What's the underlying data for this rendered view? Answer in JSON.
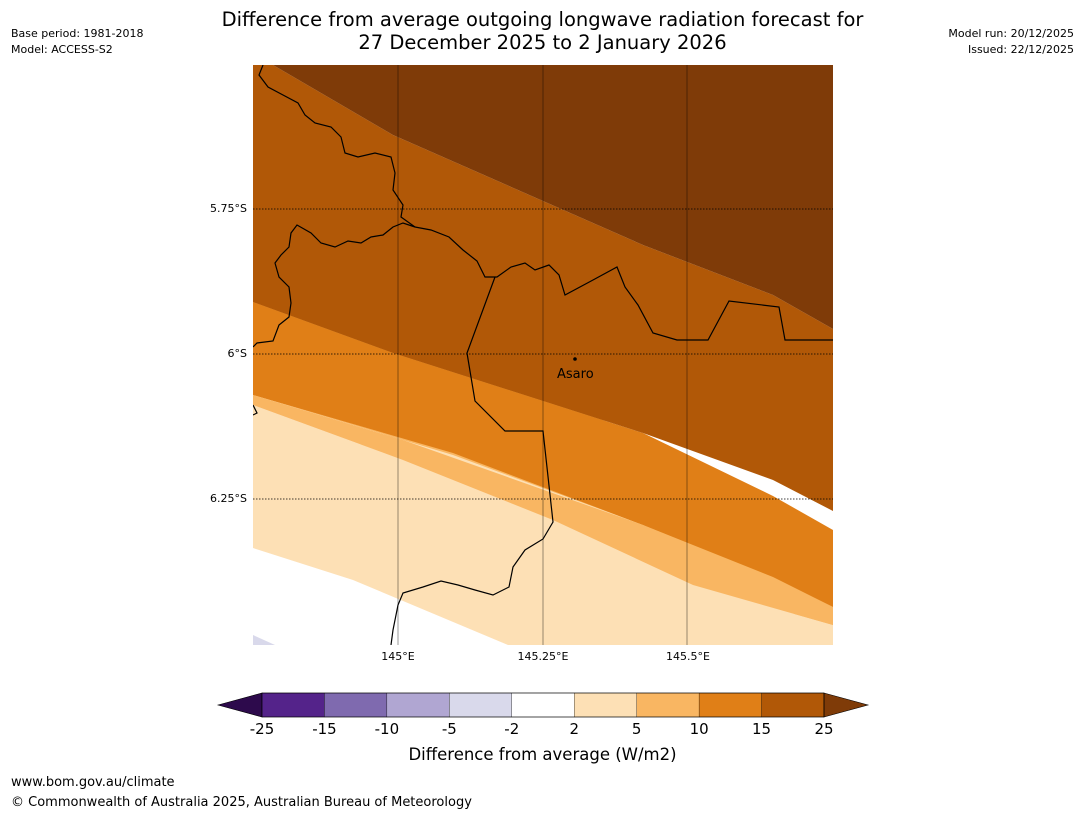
{
  "header": {
    "base_period": "Base period: 1981-2018",
    "model": "Model: ACCESS-S2",
    "model_run": "Model run: 20/12/2025",
    "issued": "Issued: 22/12/2025",
    "title_line1": "Difference from average outgoing longwave radiation forecast for",
    "title_line2": "27 December 2025 to 2 January 2026"
  },
  "map": {
    "lat_labels": [
      "5.75°S",
      "6°S",
      "6.25°S"
    ],
    "lon_labels": [
      "145°E",
      "145.25°E",
      "145.5°E"
    ],
    "place": {
      "name": "Asaro",
      "lon": 145.32,
      "lat": -6.01
    }
  },
  "colorbar": {
    "ticks": [
      "-25",
      "-15",
      "-10",
      "-5",
      "-2",
      "2",
      "5",
      "10",
      "15",
      "25"
    ],
    "colors": [
      "#54238a",
      "#7f6aaf",
      "#b0a6d2",
      "#d9d9eb",
      "#ffffff",
      "#fde0b5",
      "#f9b662",
      "#e07f17",
      "#b15807"
    ],
    "under_color": "#2d0a4c",
    "over_color": "#7f3b08",
    "label": "Difference from average (W/m2)"
  },
  "footer": {
    "url": "www.bom.gov.au/climate",
    "copyright": "© Commonwealth of Australia 2025, Australian Bureau of Meteorology"
  }
}
